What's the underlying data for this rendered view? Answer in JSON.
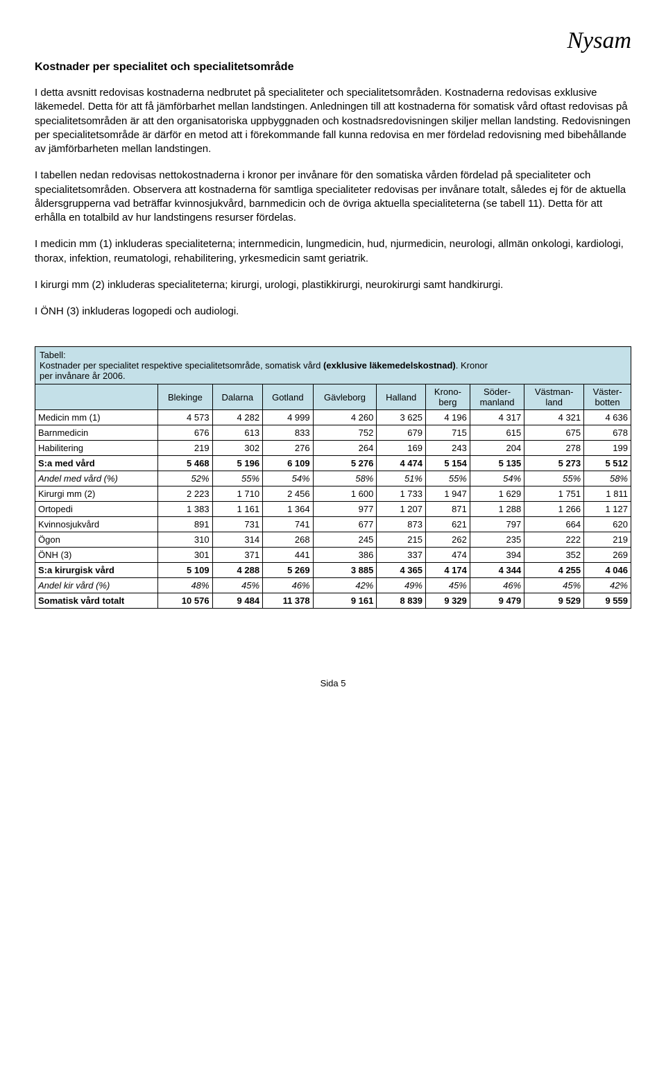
{
  "logo": "Nysam",
  "heading": "Kostnader per specialitet och specialitetsområde",
  "paragraphs": [
    "I detta avsnitt redovisas kostnaderna nedbrutet på specialiteter och specialitetsområden. Kostnaderna redovisas exklusive läkemedel. Detta för att få jämförbarhet mellan landstingen. Anledningen till att kostnaderna för somatisk vård oftast redovisas på specialitetsområden är att den organisatoriska uppbyggnaden och kostnadsredovisningen skiljer mellan landsting. Redovisningen per specialitetsområde är därför en metod att i förekommande fall kunna redovisa en mer fördelad redovisning med bibehållande av jämförbarheten mellan landstingen.",
    "I tabellen nedan redovisas nettokostnaderna i kronor per invånare för den somatiska vården fördelad på specialiteter och specialitetsområden. Observera att kostnaderna för samtliga specialiteter redovisas per invånare totalt, således ej för de aktuella åldersgrupperna vad beträffar kvinnosjukvård, barnmedicin och de övriga aktuella specialiteterna (se tabell 11). Detta för att erhålla en totalbild av hur landstingens resurser fördelas.",
    "I medicin mm (1) inkluderas specialiteterna; internmedicin, lungmedicin, hud, njurmedicin, neurologi, allmän onkologi, kardiologi, thorax, infektion, reumatologi, rehabilitering, yrkesmedicin samt geriatrik.",
    "I kirurgi mm (2) inkluderas specialiteterna; kirurgi, urologi, plastikkirurgi, neurokirurgi samt handkirurgi.",
    "I ÖNH (3) inkluderas logopedi och audiologi."
  ],
  "table": {
    "caption_label": "Tabell:",
    "caption_line1_a": "Kostnader per specialitet respektive specialitetsområde, somatisk vård ",
    "caption_line1_b": "(exklusive läkemedelskostnad)",
    "caption_line1_c": ". Kronor",
    "caption_line2": "per invånare år 2006.",
    "columns": [
      "Blekinge",
      "Dalarna",
      "Gotland",
      "Gävleborg",
      "Halland",
      "Krono-\nberg",
      "Söder-\nmanland",
      "Västman-\nland",
      "Väster-\nbotten"
    ],
    "rows": [
      {
        "label": "Medicin mm (1)",
        "style": "",
        "v": [
          "4 573",
          "4 282",
          "4 999",
          "4 260",
          "3 625",
          "4 196",
          "4 317",
          "4 321",
          "4 636"
        ]
      },
      {
        "label": "Barnmedicin",
        "style": "",
        "v": [
          "676",
          "613",
          "833",
          "752",
          "679",
          "715",
          "615",
          "675",
          "678"
        ]
      },
      {
        "label": "Habilitering",
        "style": "",
        "v": [
          "219",
          "302",
          "276",
          "264",
          "169",
          "243",
          "204",
          "278",
          "199"
        ]
      },
      {
        "label": "S:a med vård",
        "style": "bold",
        "v": [
          "5 468",
          "5 196",
          "6 109",
          "5 276",
          "4 474",
          "5 154",
          "5 135",
          "5 273",
          "5 512"
        ]
      },
      {
        "label": "Andel med vård (%)",
        "style": "italic",
        "v": [
          "52%",
          "55%",
          "54%",
          "58%",
          "51%",
          "55%",
          "54%",
          "55%",
          "58%"
        ]
      },
      {
        "label": "Kirurgi mm (2)",
        "style": "",
        "v": [
          "2 223",
          "1 710",
          "2 456",
          "1 600",
          "1 733",
          "1 947",
          "1 629",
          "1 751",
          "1 811"
        ]
      },
      {
        "label": "Ortopedi",
        "style": "",
        "v": [
          "1 383",
          "1 161",
          "1 364",
          "977",
          "1 207",
          "871",
          "1 288",
          "1 266",
          "1 127"
        ]
      },
      {
        "label": "Kvinnosjukvård",
        "style": "",
        "v": [
          "891",
          "731",
          "741",
          "677",
          "873",
          "621",
          "797",
          "664",
          "620"
        ]
      },
      {
        "label": "Ögon",
        "style": "",
        "v": [
          "310",
          "314",
          "268",
          "245",
          "215",
          "262",
          "235",
          "222",
          "219"
        ]
      },
      {
        "label": "ÖNH (3)",
        "style": "",
        "v": [
          "301",
          "371",
          "441",
          "386",
          "337",
          "474",
          "394",
          "352",
          "269"
        ]
      },
      {
        "label": "S:a kirurgisk vård",
        "style": "bold",
        "v": [
          "5 109",
          "4 288",
          "5 269",
          "3 885",
          "4 365",
          "4 174",
          "4 344",
          "4 255",
          "4 046"
        ]
      },
      {
        "label": "Andel kir vård (%)",
        "style": "italic",
        "v": [
          "48%",
          "45%",
          "46%",
          "42%",
          "49%",
          "45%",
          "46%",
          "45%",
          "42%"
        ]
      },
      {
        "label": "Somatisk vård totalt",
        "style": "bold",
        "v": [
          "10 576",
          "9 484",
          "11 378",
          "9 161",
          "8 839",
          "9 329",
          "9 479",
          "9 529",
          "9 559"
        ]
      }
    ],
    "header_bg": "#c4e0e8",
    "border_color": "#000000"
  },
  "footer": "Sida   5"
}
